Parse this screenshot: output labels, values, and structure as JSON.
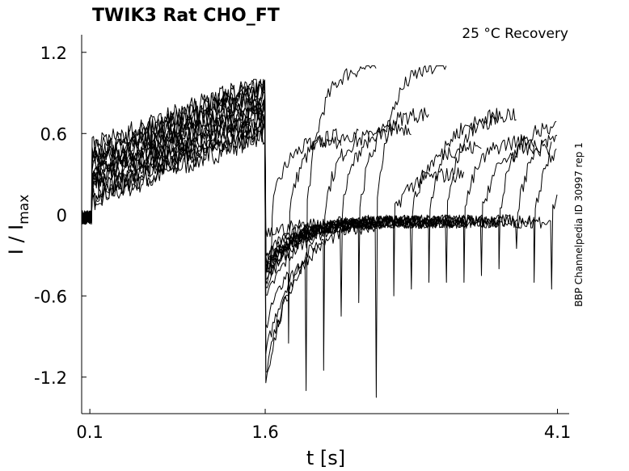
{
  "chart_data": {
    "type": "line",
    "title": "TWIK3  Rat  CHO_FT",
    "subtitle": "25 °C  Recovery",
    "xlabel": "t [s]",
    "ylabel_main": "I / I",
    "ylabel_sub": "max",
    "side_note": "BBP Channelpedia ID 30997 rep 1",
    "xlim": [
      0.03,
      4.2
    ],
    "ylim": [
      -1.47,
      1.33
    ],
    "x_ticks": [
      {
        "value": 0.1,
        "label": "0.1"
      },
      {
        "value": 1.6,
        "label": "1.6"
      },
      {
        "value": 4.1,
        "label": "4.1"
      }
    ],
    "y_ticks": [
      {
        "value": 1.2,
        "label": "1.2"
      },
      {
        "value": 0.6,
        "label": "0.6"
      },
      {
        "value": 0,
        "label": "0"
      },
      {
        "value": -0.6,
        "label": "-0.6"
      },
      {
        "value": -1.2,
        "label": "-1.2"
      }
    ],
    "segments": {
      "baseline": {
        "x": [
          0.03,
          0.12
        ],
        "y": [
          0.0,
          -0.03
        ]
      },
      "step_onset": 0.12,
      "depolarizing_phase": {
        "x_start": 0.12,
        "x_end": 1.6,
        "y_start_range": [
          0.1,
          0.5
        ],
        "y_end_range": [
          0.6,
          1.0
        ]
      },
      "step_offset": 1.6,
      "recovery_pulse_times": [
        1.65,
        1.8,
        1.95,
        2.1,
        2.25,
        2.4,
        2.55,
        2.7,
        2.85,
        3.0,
        3.15,
        3.3,
        3.45,
        3.6,
        3.75,
        3.9,
        4.05
      ],
      "recovery_peak_levels": [
        0.55,
        0.6,
        1.1,
        0.6,
        0.65,
        0.75,
        1.1,
        0.3,
        0.5,
        0.7,
        0.75,
        0.55,
        0.5,
        0.65,
        0.6,
        0.6,
        0.45
      ],
      "tail_levels": [
        -0.3,
        -0.8,
        -1.15,
        -1.0,
        -0.6,
        -0.5,
        -1.2,
        -0.45,
        -0.4,
        -0.35,
        -0.35,
        -0.35,
        -0.3,
        -0.25,
        -0.1,
        -0.35,
        -0.4
      ]
    }
  }
}
